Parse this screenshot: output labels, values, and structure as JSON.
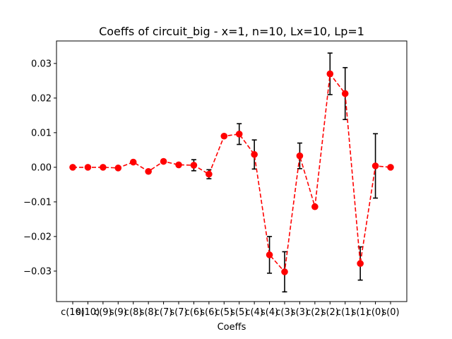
{
  "chart_data": {
    "type": "line",
    "title": "Coeffs of circuit_big - x=1, n=10, Lx=10, Lp=1",
    "xlabel": "Coeffs",
    "ylabel": "",
    "categories": [
      "c(10)",
      "s(10)",
      "c(9)",
      "s(9)",
      "c(8)",
      "s(8)",
      "c(7)",
      "s(7)",
      "c(6)",
      "s(6)",
      "c(5)",
      "s(5)",
      "c(4)",
      "s(4)",
      "c(3)",
      "s(3)",
      "c(2)",
      "s(2)",
      "c(1)",
      "s(1)",
      "c(0)",
      "s(0)"
    ],
    "values": [
      0.0,
      0.0,
      0.0,
      -0.0002,
      0.0015,
      -0.0012,
      0.0017,
      0.0007,
      0.0006,
      -0.002,
      0.009,
      0.0096,
      0.0037,
      -0.0253,
      -0.0302,
      0.0033,
      -0.0114,
      0.027,
      0.0213,
      -0.0278,
      0.0004,
      0.0
    ],
    "errors": [
      0.0,
      0.0,
      0.0,
      0.0,
      0.0,
      0.0,
      0.0,
      0.0,
      0.0016,
      0.0013,
      0.0,
      0.003,
      0.0042,
      0.0053,
      0.0058,
      0.0037,
      0.0005,
      0.006,
      0.0075,
      0.0048,
      0.0093,
      0.0
    ],
    "yticks": [
      -0.03,
      -0.02,
      -0.01,
      0.0,
      0.01,
      0.02,
      0.03
    ],
    "ytick_labels": [
      "−0.03",
      "−0.02",
      "−0.01",
      "0.00",
      "0.01",
      "0.02",
      "0.03"
    ],
    "ylim": [
      -0.0388,
      0.0365
    ],
    "grid": false,
    "color": "#ff0000",
    "error_color": "#000000",
    "line_style": "dashed",
    "marker": "circle"
  }
}
